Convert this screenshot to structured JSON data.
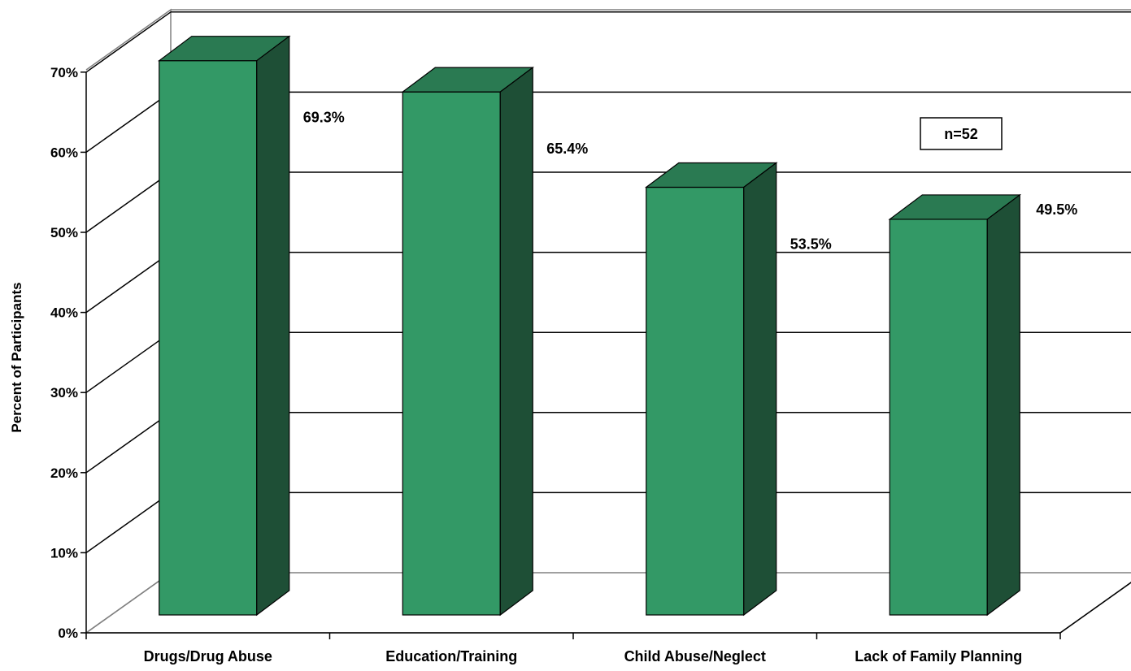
{
  "chart_data": {
    "type": "bar",
    "categories": [
      "Drugs/Drug Abuse",
      "Education/Training",
      "Child Abuse/Neglect",
      "Lack of Family Planning"
    ],
    "values": [
      69.3,
      65.4,
      53.5,
      49.5
    ],
    "data_labels": [
      "69.3%",
      "65.4%",
      "53.5%",
      "49.5%"
    ],
    "ylabel": "Percent of Participants",
    "ylim": [
      0,
      70
    ],
    "yticks": [
      0,
      10,
      20,
      30,
      40,
      50,
      60,
      70
    ],
    "ytick_labels": [
      "0%",
      "10%",
      "20%",
      "30%",
      "40%",
      "50%",
      "60%",
      "70%"
    ],
    "grid": true,
    "three_d": true,
    "annotation": "n=52",
    "colors": {
      "bar_front": "#339966",
      "bar_top": "#2a7a52",
      "bar_side": "#1e4f36"
    }
  }
}
